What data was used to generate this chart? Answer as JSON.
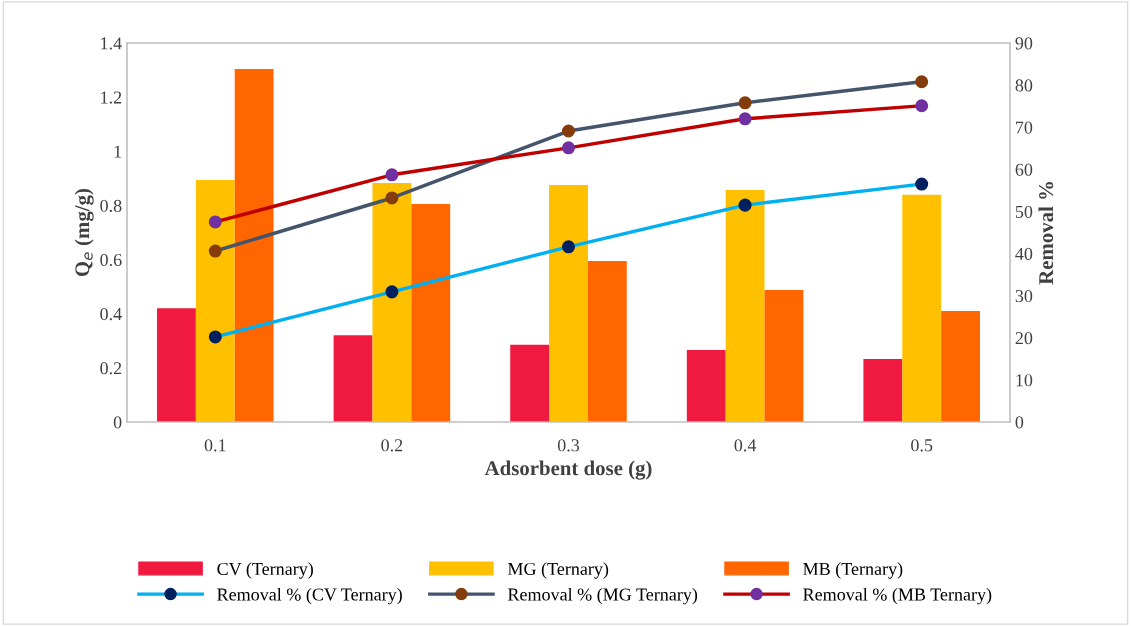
{
  "chart_data": {
    "type": "bar",
    "xlabel": "Adsorbent dose (g)",
    "ylabel": "Q$_{e}$ (mg/g)",
    "y2label": "Removal %",
    "categories": [
      "0.1",
      "0.2",
      "0.3",
      "0.4",
      "0.5"
    ],
    "ylim": [
      0,
      1.4
    ],
    "yticks": [
      0,
      0.2,
      0.4,
      0.6,
      0.8,
      1,
      1.2,
      1.4
    ],
    "y2lim": [
      0,
      90
    ],
    "y2ticks": [
      0,
      10,
      20,
      30,
      40,
      50,
      60,
      70,
      80,
      90
    ],
    "grid": false,
    "legend": "bottom",
    "marker": "circle",
    "line_style": "solid",
    "series": [
      {
        "name": "CV (Ternary)",
        "color": "#f01a40",
        "values": [
          0.42,
          0.32,
          0.285,
          0.266,
          0.233
        ]
      },
      {
        "name": "MG (Ternary)",
        "color": "#ffc000",
        "values": [
          0.894,
          0.883,
          0.875,
          0.857,
          0.839
        ]
      },
      {
        "name": "MB (Ternary)",
        "color": "#ff6600",
        "values": [
          1.304,
          0.805,
          0.595,
          0.488,
          0.41
        ]
      },
      {
        "name": "Removal % (CV Ternary)",
        "type": "line",
        "axis": "y2",
        "color": "#00b0f0",
        "colors": [
          "#002060",
          "#002060",
          "#002060",
          "#002060",
          "#002060"
        ],
        "values": [
          20.2,
          30.9,
          41.6,
          51.5,
          56.5
        ]
      },
      {
        "name": "Removal % (MG Ternary)",
        "type": "line",
        "axis": "y2",
        "color": "#44546a",
        "colors": [
          "#843c0c",
          "#843c0c",
          "#843c0c",
          "#843c0c",
          "#843c0c"
        ],
        "values": [
          40.6,
          53.2,
          69.1,
          75.8,
          80.8
        ]
      },
      {
        "name": "Removal % (MB Ternary)",
        "type": "line",
        "axis": "y2",
        "color": "#c00000",
        "colors": [
          "#7030a0",
          "#7030a0",
          "#7030a0",
          "#7030a0",
          "#7030a0"
        ],
        "values": [
          47.5,
          58.7,
          65.1,
          72.0,
          75.1
        ]
      }
    ]
  }
}
